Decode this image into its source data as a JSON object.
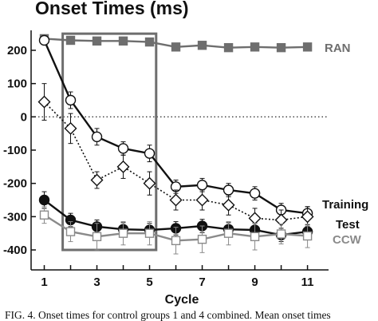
{
  "chart_data": {
    "type": "line",
    "title": "Onset Times (ms)",
    "xlabel": "Cycle",
    "ylabel": "",
    "xlim": [
      0.5,
      11.8
    ],
    "ylim": [
      -460,
      260
    ],
    "x_ticks": [
      1,
      3,
      5,
      7,
      9,
      11
    ],
    "y_ticks": [
      200,
      100,
      0,
      -100,
      -200,
      -300,
      -400
    ],
    "grid": false,
    "reference_line": {
      "y": 0,
      "style": "dotted"
    },
    "highlight_box": {
      "x": [
        1.7,
        5.25
      ],
      "y": [
        -400,
        250
      ]
    },
    "series": [
      {
        "name": "RAN",
        "color": "#6e6e6e",
        "marker": "filled-square",
        "line": "solid",
        "x": [
          1,
          2,
          3,
          4,
          5,
          6,
          7,
          8,
          9,
          10,
          11
        ],
        "y": [
          235,
          230,
          228,
          228,
          225,
          210,
          215,
          208,
          210,
          208,
          210
        ],
        "err": [
          0,
          0,
          0,
          0,
          0,
          0,
          0,
          0,
          0,
          0,
          0
        ]
      },
      {
        "name": "Training",
        "color": "#111111",
        "marker": "open-circle",
        "line": "solid",
        "x": [
          1,
          2,
          3,
          4,
          5,
          6,
          7,
          8,
          9,
          10,
          11
        ],
        "y": [
          230,
          50,
          -60,
          -95,
          -110,
          -210,
          -205,
          -220,
          -230,
          -280,
          -290
        ],
        "err": [
          0,
          25,
          25,
          20,
          25,
          20,
          20,
          20,
          20,
          20,
          20
        ]
      },
      {
        "name": "",
        "color": "#111111",
        "marker": "open-diamond",
        "line": "dotted",
        "x": [
          1,
          2,
          3,
          4,
          5,
          6,
          7,
          8,
          9,
          10,
          11
        ],
        "y": [
          45,
          -35,
          -190,
          -150,
          -200,
          -250,
          -250,
          -265,
          -305,
          -310,
          -300
        ],
        "err": [
          55,
          45,
          25,
          35,
          35,
          30,
          30,
          30,
          30,
          30,
          30
        ]
      },
      {
        "name": "Test",
        "color": "#111111",
        "marker": "filled-circle",
        "line": "solid",
        "x": [
          1,
          2,
          3,
          4,
          5,
          6,
          7,
          8,
          9,
          10,
          11
        ],
        "y": [
          -250,
          -310,
          -330,
          -338,
          -340,
          -335,
          -328,
          -338,
          -340,
          -355,
          -345
        ],
        "err": [
          25,
          20,
          20,
          20,
          20,
          20,
          20,
          20,
          20,
          20,
          20
        ]
      },
      {
        "name": "CCW",
        "color": "#8a8a8a",
        "marker": "open-square",
        "line": "solid",
        "x": [
          1,
          2,
          3,
          4,
          5,
          6,
          7,
          8,
          9,
          10,
          11
        ],
        "y": [
          -295,
          -345,
          -360,
          -350,
          -350,
          -372,
          -368,
          -350,
          -360,
          -352,
          -358
        ],
        "err": [
          25,
          30,
          40,
          35,
          35,
          40,
          40,
          35,
          40,
          30,
          35
        ]
      }
    ]
  },
  "caption": "FIG. 4.    Onset times for control groups 1 and 4 combined. Mean onset times"
}
